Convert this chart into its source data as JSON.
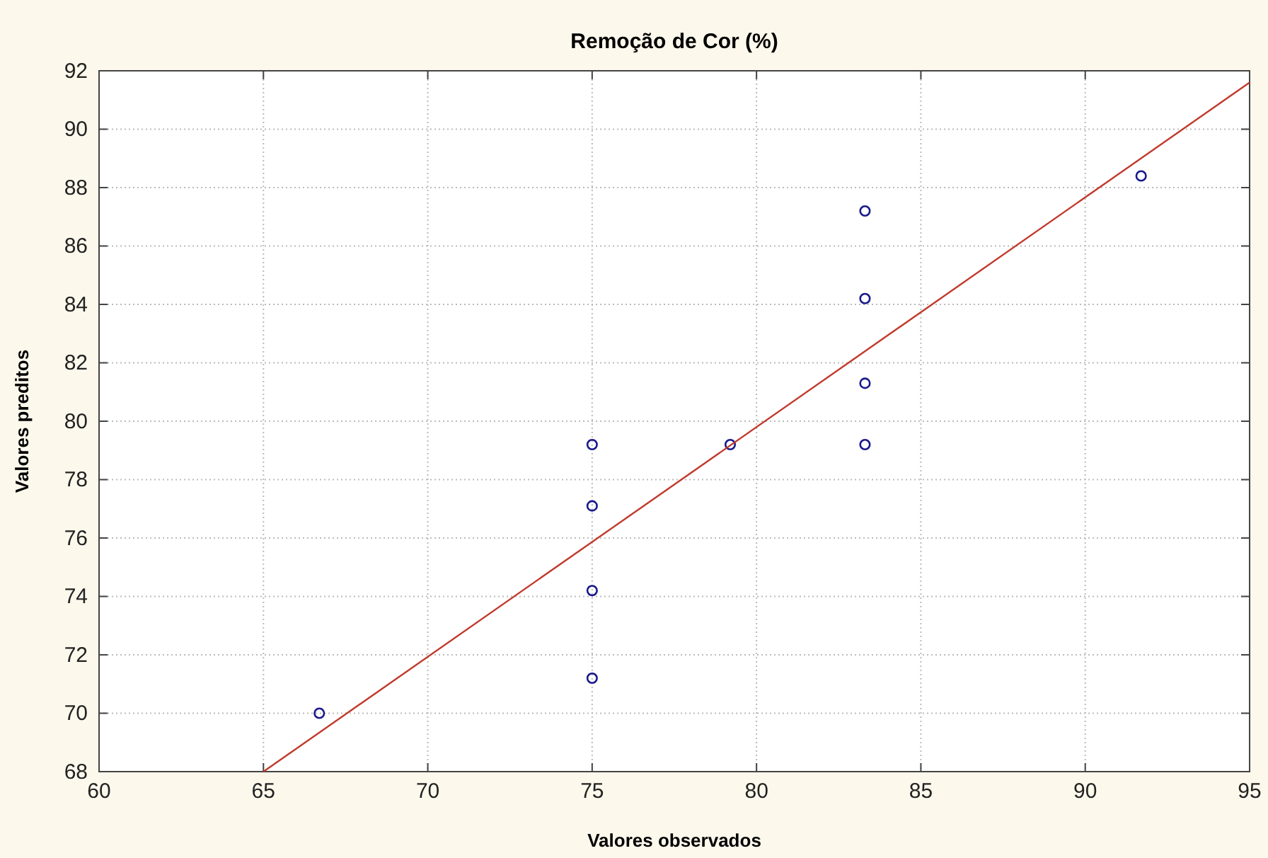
{
  "chart_data": {
    "type": "scatter",
    "title": "Remoção de Cor (%)",
    "xlabel": "Valores observados",
    "ylabel": "Valores preditos",
    "xlim": [
      60,
      95
    ],
    "xticks": [
      60,
      65,
      70,
      75,
      80,
      85,
      90,
      95
    ],
    "ylim": [
      68,
      92
    ],
    "yticks": [
      68,
      70,
      72,
      74,
      76,
      78,
      80,
      82,
      84,
      86,
      88,
      90,
      92
    ],
    "grid": true,
    "series": [
      {
        "marker": "circle",
        "color": "#1a1a8c",
        "x": [
          66.7,
          75,
          75,
          75,
          75,
          79.2,
          83.3,
          83.3,
          83.3,
          83.3,
          91.7
        ],
        "values": [
          70.0,
          71.2,
          74.2,
          77.1,
          79.2,
          79.2,
          79.2,
          81.3,
          84.2,
          87.2,
          88.4
        ]
      },
      {
        "type": "line",
        "color": "#c0392b",
        "x": [
          65,
          95
        ],
        "values": [
          68,
          91.6
        ],
        "line_style": "solid"
      }
    ]
  }
}
